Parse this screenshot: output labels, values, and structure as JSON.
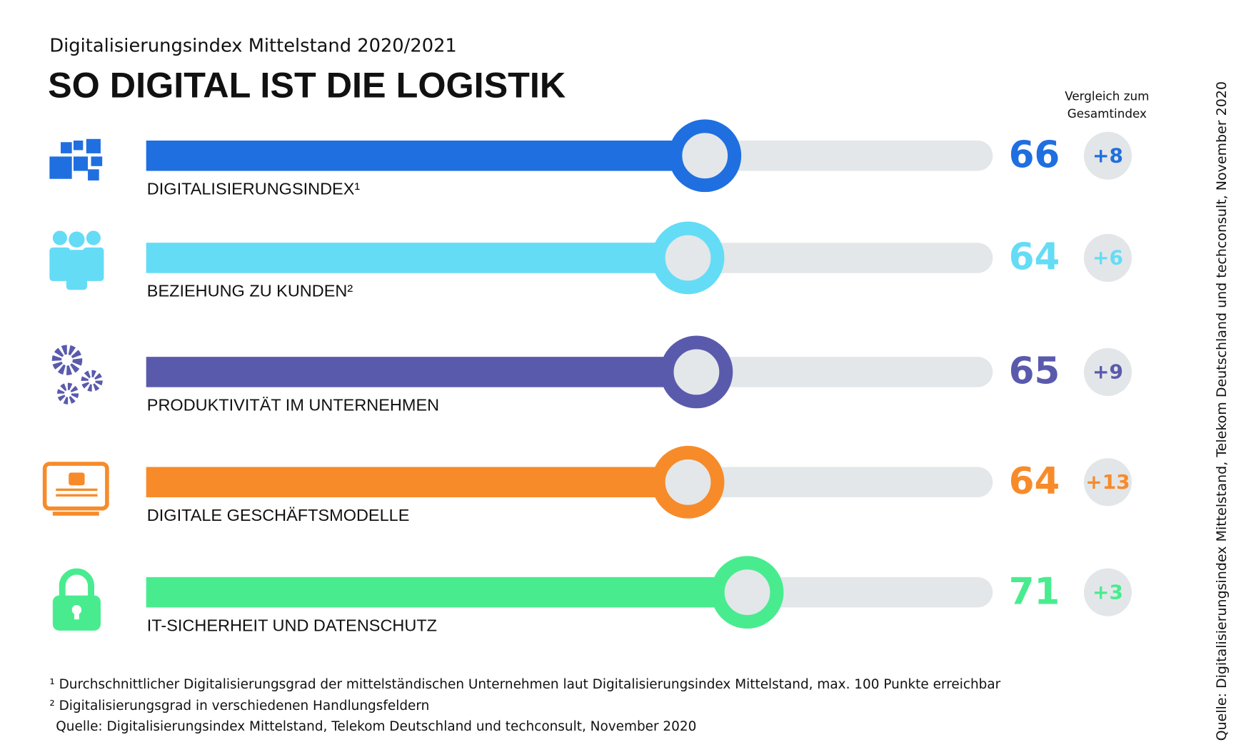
{
  "chart_data": {
    "type": "bar",
    "subtitle": "Digitalisierungsindex Mittelstand 2020/2021",
    "title": "SO DIGITAL IST DIE LOGISTIK",
    "categories": [
      "DIGITALISIERUNGSINDEX¹",
      "BEZIEHUNG ZU KUNDEN²",
      "PRODUKTIVITÄT IM UNTERNEHMEN",
      "DIGITALE GESCHÄFTSMODELLE",
      "IT-SICHERHEIT UND DATENSCHUTZ"
    ],
    "values": [
      66,
      64,
      65,
      64,
      71
    ],
    "colors": [
      "#1f6fe0",
      "#64dcf5",
      "#5a5aad",
      "#f78b2a",
      "#48ec8f"
    ],
    "xlim": [
      0,
      100
    ],
    "comparison": {
      "label": [
        "Vergleich zum",
        "Gesamtindex"
      ],
      "values": [
        8,
        6,
        9,
        13,
        3
      ],
      "value_labels": [
        "+8",
        "+6",
        "+9",
        "+13",
        "+3"
      ]
    },
    "footnotes": [
      "¹ Durchschnittlicher Digitalisierungsgrad der mittelständischen Unternehmen laut Digitalisierungsindex Mittelstand, max. 100 Punkte erreichbar",
      "² Digitalisierungsgrad in verschiedenen Handlungsfeldern",
      "Quelle: Digitalisierungsindex Mittelstand, Telekom Deutschland und techconsult, November 2020"
    ],
    "source_vertical": "Quelle: Digitalisierungsindex Mittelstand, Telekom Deutschland und techconsult, November 2020"
  }
}
